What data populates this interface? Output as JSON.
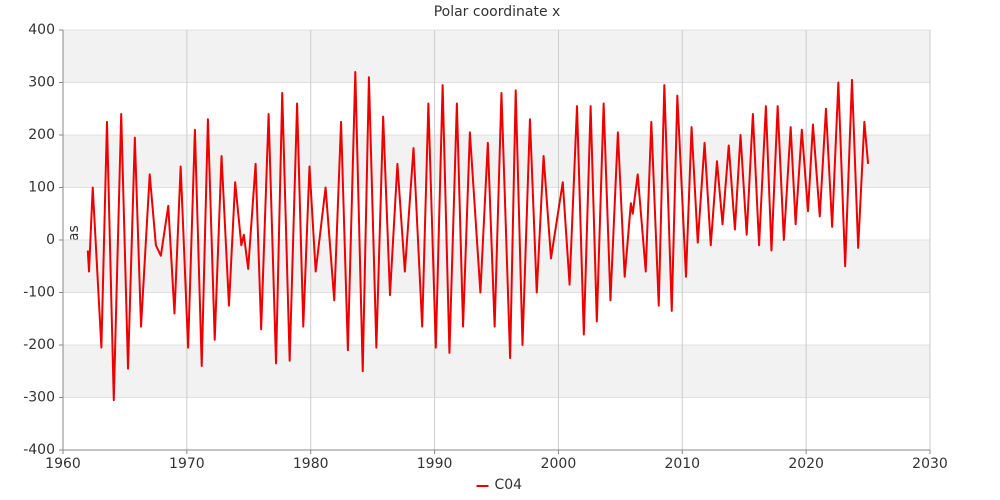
{
  "chart_data": {
    "type": "line",
    "title": "Polar coordinate x",
    "ylabel": "mas",
    "x": [
      1962.0,
      1962.1,
      1962.4,
      1963.1,
      1963.55,
      1964.1,
      1964.7,
      1965.25,
      1965.8,
      1966.3,
      1967.0,
      1967.5,
      1967.9,
      1968.5,
      1969.0,
      1969.5,
      1970.1,
      1970.65,
      1971.2,
      1971.7,
      1972.25,
      1972.8,
      1973.4,
      1973.9,
      1974.4,
      1974.6,
      1974.95,
      1975.55,
      1976.0,
      1976.6,
      1977.2,
      1977.7,
      1978.3,
      1978.9,
      1979.4,
      1979.9,
      1980.4,
      1981.2,
      1981.9,
      1982.45,
      1983.0,
      1983.6,
      1984.2,
      1984.7,
      1985.3,
      1985.85,
      1986.4,
      1987.0,
      1987.6,
      1988.3,
      1989.0,
      1989.5,
      1990.1,
      1990.65,
      1991.2,
      1991.8,
      1992.3,
      1992.85,
      1993.7,
      1994.3,
      1994.85,
      1995.4,
      1996.1,
      1996.55,
      1997.1,
      1997.7,
      1998.25,
      1998.8,
      1999.4,
      2000.35,
      2000.9,
      2001.5,
      2002.05,
      2002.6,
      2003.1,
      2003.65,
      2004.2,
      2004.8,
      2005.35,
      2005.85,
      2006.0,
      2006.4,
      2007.05,
      2007.5,
      2008.1,
      2008.55,
      2009.15,
      2009.6,
      2010.3,
      2010.75,
      2011.25,
      2011.8,
      2012.3,
      2012.8,
      2013.25,
      2013.75,
      2014.25,
      2014.7,
      2015.2,
      2015.7,
      2016.2,
      2016.75,
      2017.2,
      2017.7,
      2018.2,
      2018.75,
      2019.15,
      2019.65,
      2020.15,
      2020.55,
      2021.1,
      2021.6,
      2022.1,
      2022.6,
      2023.15,
      2023.7,
      2024.2,
      2024.7,
      2025.0
    ],
    "series": [
      {
        "name": "C04",
        "color": "#ee0000",
        "values": [
          -20,
          -60,
          100,
          -205,
          225,
          -305,
          240,
          -245,
          195,
          -165,
          125,
          -10,
          -30,
          65,
          -140,
          140,
          -205,
          210,
          -240,
          230,
          -190,
          160,
          -125,
          110,
          -10,
          10,
          -55,
          145,
          -170,
          240,
          -235,
          280,
          -230,
          260,
          -165,
          140,
          -60,
          100,
          -115,
          225,
          -210,
          320,
          -250,
          310,
          -205,
          235,
          -105,
          145,
          -60,
          175,
          -165,
          260,
          -205,
          295,
          -215,
          260,
          -165,
          205,
          -100,
          185,
          -165,
          280,
          -225,
          285,
          -200,
          230,
          -100,
          160,
          -35,
          110,
          -85,
          255,
          -180,
          255,
          -155,
          260,
          -115,
          205,
          -70,
          70,
          50,
          125,
          -60,
          225,
          -125,
          295,
          -135,
          275,
          -70,
          215,
          -5,
          185,
          -10,
          150,
          30,
          180,
          20,
          200,
          10,
          240,
          -10,
          255,
          -20,
          255,
          0,
          215,
          30,
          210,
          55,
          220,
          45,
          250,
          25,
          300,
          -50,
          305,
          -15,
          225,
          145
        ]
      }
    ],
    "xlim": [
      1960,
      2030
    ],
    "xticks": [
      1960,
      1970,
      1980,
      1990,
      2000,
      2010,
      2020,
      2030
    ],
    "ylim": [
      -400,
      400
    ],
    "yticks": [
      -400,
      -300,
      -200,
      -100,
      0,
      100,
      200,
      300,
      400
    ],
    "grid": true
  }
}
